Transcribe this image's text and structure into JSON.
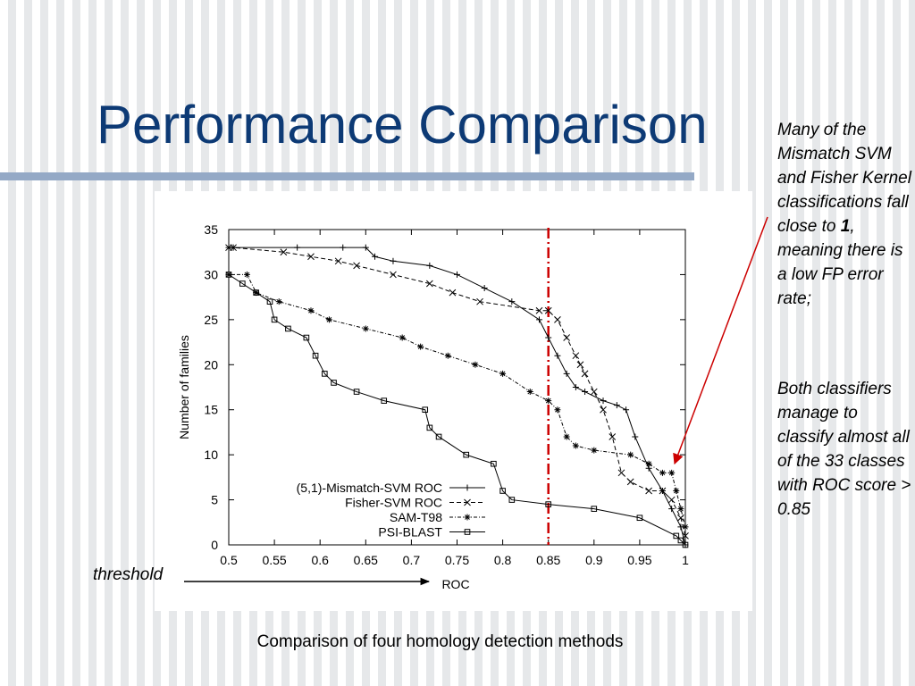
{
  "slide": {
    "title": "Performance Comparison",
    "caption": "Comparison of four homology detection methods",
    "threshold_label": "threshold",
    "note1": {
      "text_before": "Many of the Mismatch SVM and Fisher Kernel classifications fall close to ",
      "bold": "1",
      "text_after": ", meaning there is a low FP error rate;"
    },
    "note2": "Both classifiers manage to classify almost all of the 33 classes with ROC score > 0.85",
    "colors": {
      "title": "#0d3a75",
      "rule": "#94a9c6",
      "threshold_line": "#cc0000",
      "arrow": "#cc0000"
    }
  },
  "chart_data": {
    "type": "line",
    "xlabel": "ROC",
    "ylabel": "Number of families",
    "xlim": [
      0.5,
      1
    ],
    "ylim": [
      0,
      35
    ],
    "xticks": [
      "0.5",
      "0.55",
      "0.6",
      "0.65",
      "0.7",
      "0.75",
      "0.8",
      "0.85",
      "0.9",
      "0.95",
      "1"
    ],
    "yticks": [
      "0",
      "5",
      "10",
      "15",
      "20",
      "25",
      "30",
      "35"
    ],
    "grid": false,
    "legend_position": "bottom-left",
    "threshold_x": 0.85,
    "series": [
      {
        "name": "(5,1)-Mismatch-SVM ROC",
        "marker": "plus",
        "dash": "solid",
        "x": [
          0.5,
          0.505,
          0.575,
          0.625,
          0.65,
          0.66,
          0.68,
          0.72,
          0.75,
          0.78,
          0.81,
          0.84,
          0.85,
          0.86,
          0.87,
          0.88,
          0.89,
          0.91,
          0.925,
          0.935,
          0.945,
          0.96,
          0.975,
          0.985,
          0.995,
          1
        ],
        "y": [
          33,
          33,
          33,
          33,
          33,
          32,
          31.5,
          31,
          30,
          28.5,
          27,
          25,
          23,
          21,
          19,
          17.5,
          17,
          16,
          15.5,
          15,
          12,
          8.5,
          6,
          4,
          2,
          0
        ]
      },
      {
        "name": "Fisher-SVM ROC",
        "marker": "x",
        "dash": "dash",
        "x": [
          0.5,
          0.505,
          0.56,
          0.59,
          0.62,
          0.64,
          0.68,
          0.72,
          0.745,
          0.775,
          0.84,
          0.85,
          0.86,
          0.87,
          0.88,
          0.885,
          0.89,
          0.9,
          0.91,
          0.92,
          0.93,
          0.94,
          0.96,
          0.975,
          0.985,
          0.995,
          1
        ],
        "y": [
          33,
          33,
          32.5,
          32,
          31.5,
          31,
          30,
          29,
          28,
          27,
          26,
          26,
          25,
          23,
          21,
          20,
          19,
          17,
          15,
          12,
          8,
          7,
          6,
          6,
          5,
          3,
          1
        ]
      },
      {
        "name": "SAM-T98",
        "marker": "star",
        "dash": "dashdot",
        "x": [
          0.5,
          0.52,
          0.53,
          0.555,
          0.59,
          0.61,
          0.65,
          0.69,
          0.71,
          0.74,
          0.77,
          0.8,
          0.83,
          0.85,
          0.86,
          0.87,
          0.88,
          0.9,
          0.94,
          0.96,
          0.975,
          0.985,
          0.99,
          0.995,
          1
        ],
        "y": [
          30,
          30,
          28,
          27,
          26,
          25,
          24,
          23,
          22,
          21,
          20,
          19,
          17,
          16,
          15,
          12,
          11,
          10.5,
          10,
          9,
          8,
          8,
          6,
          4,
          2
        ]
      },
      {
        "name": "PSI-BLAST",
        "marker": "square",
        "dash": "solid",
        "x": [
          0.5,
          0.515,
          0.53,
          0.545,
          0.55,
          0.565,
          0.585,
          0.595,
          0.605,
          0.615,
          0.64,
          0.67,
          0.715,
          0.72,
          0.73,
          0.76,
          0.79,
          0.8,
          0.81,
          0.85,
          0.9,
          0.95,
          0.99,
          0.995,
          1
        ],
        "y": [
          30,
          29,
          28,
          27,
          25,
          24,
          23,
          21,
          19,
          18,
          17,
          16,
          15,
          13,
          12,
          10,
          9,
          6,
          5,
          4.5,
          4,
          3,
          1,
          0.5,
          0
        ]
      }
    ]
  }
}
